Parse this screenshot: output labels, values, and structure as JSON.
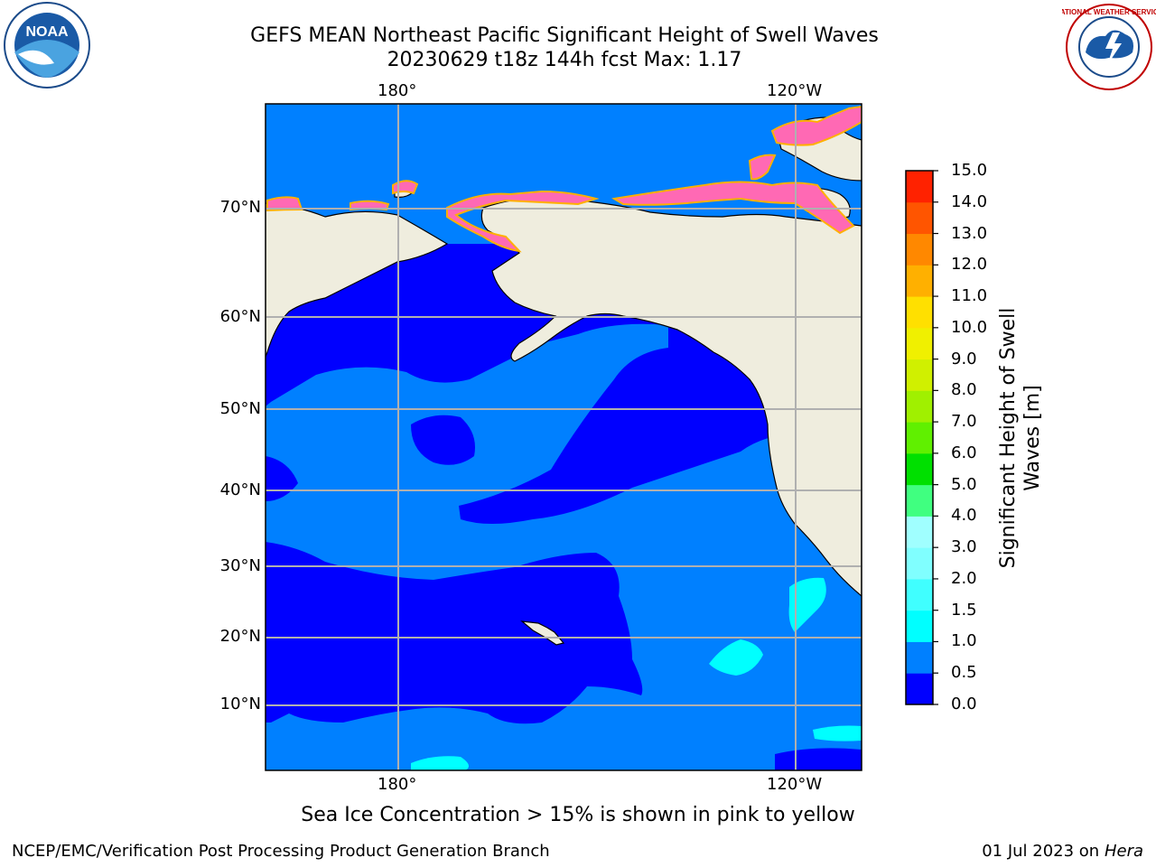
{
  "title": {
    "line1": "GEFS MEAN Northeast Pacific Significant Height of Swell Waves",
    "line2": "20230629 t18z 144h fcst   Max: 1.17"
  },
  "map": {
    "top_lon_labels": [
      "180°",
      "120°W"
    ],
    "bottom_lon_labels": [
      "180°",
      "120°W"
    ],
    "lat_labels": [
      "70°N",
      "60°N",
      "50°N",
      "40°N",
      "30°N",
      "20°N",
      "10°N"
    ],
    "note": "Sea Ice Concentration > 15% is shown in pink to yellow",
    "colors": {
      "land": "#efedde",
      "level_0_0.5": "#0000ff",
      "level_0.5_1.0": "#0080ff",
      "level_1.0_1.5": "#00ffff",
      "sea_ice": "#ff69b4",
      "grid": "#b0b0b0"
    }
  },
  "colorbar": {
    "label_line1": "Significant Height of Swell",
    "label_line2": "Waves [m]",
    "ticks": [
      "0.0",
      "0.5",
      "1.0",
      "1.5",
      "2.0",
      "3.0",
      "4.0",
      "5.0",
      "6.0",
      "7.0",
      "8.0",
      "9.0",
      "10.0",
      "11.0",
      "12.0",
      "13.0",
      "14.0",
      "15.0"
    ],
    "colors": [
      "#0000ff",
      "#0080ff",
      "#00ffff",
      "#40ffff",
      "#80ffff",
      "#a0ffff",
      "#40ff80",
      "#00e000",
      "#60f000",
      "#a0f000",
      "#d0f000",
      "#f0f000",
      "#ffe000",
      "#ffb000",
      "#ff8800",
      "#ff5500",
      "#ff2200",
      "#ff0000"
    ]
  },
  "logos": {
    "left": "NOAA",
    "right": "NATIONAL WEATHER SERVICE"
  },
  "footer": {
    "left": "NCEP/EMC/Verification Post Processing Product Generation Branch",
    "right_date": "01 Jul 2023 on",
    "right_host": "Hera"
  }
}
